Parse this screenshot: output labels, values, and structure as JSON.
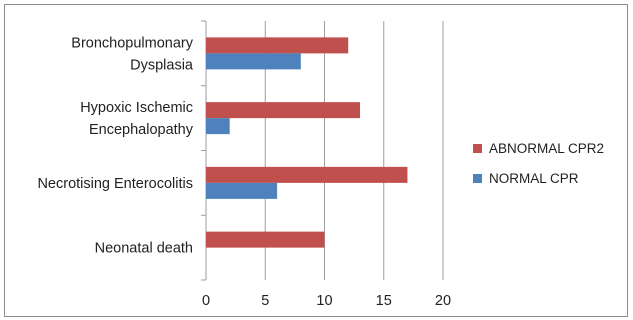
{
  "chart_data": {
    "type": "bar",
    "orientation": "horizontal",
    "categories": [
      [
        "Bronchopulmonary",
        "Dysplasia"
      ],
      [
        "Hypoxic Ischemic",
        "Encephalopathy"
      ],
      [
        "Necrotising Enterocolitis"
      ],
      [
        "Neonatal death"
      ]
    ],
    "series": [
      {
        "name": "ABNORMAL CPR2",
        "color": "#C0504D",
        "values": [
          12,
          13,
          17,
          10
        ]
      },
      {
        "name": "NORMAL CPR",
        "color": "#4F81BD",
        "values": [
          8,
          2,
          6,
          0
        ]
      }
    ],
    "xlim": [
      0,
      20
    ],
    "xticks": [
      "0",
      "5",
      "10",
      "15",
      "20"
    ],
    "xlabel": "",
    "ylabel": "",
    "title": "",
    "grid": "vertical",
    "legend_position": "right"
  }
}
